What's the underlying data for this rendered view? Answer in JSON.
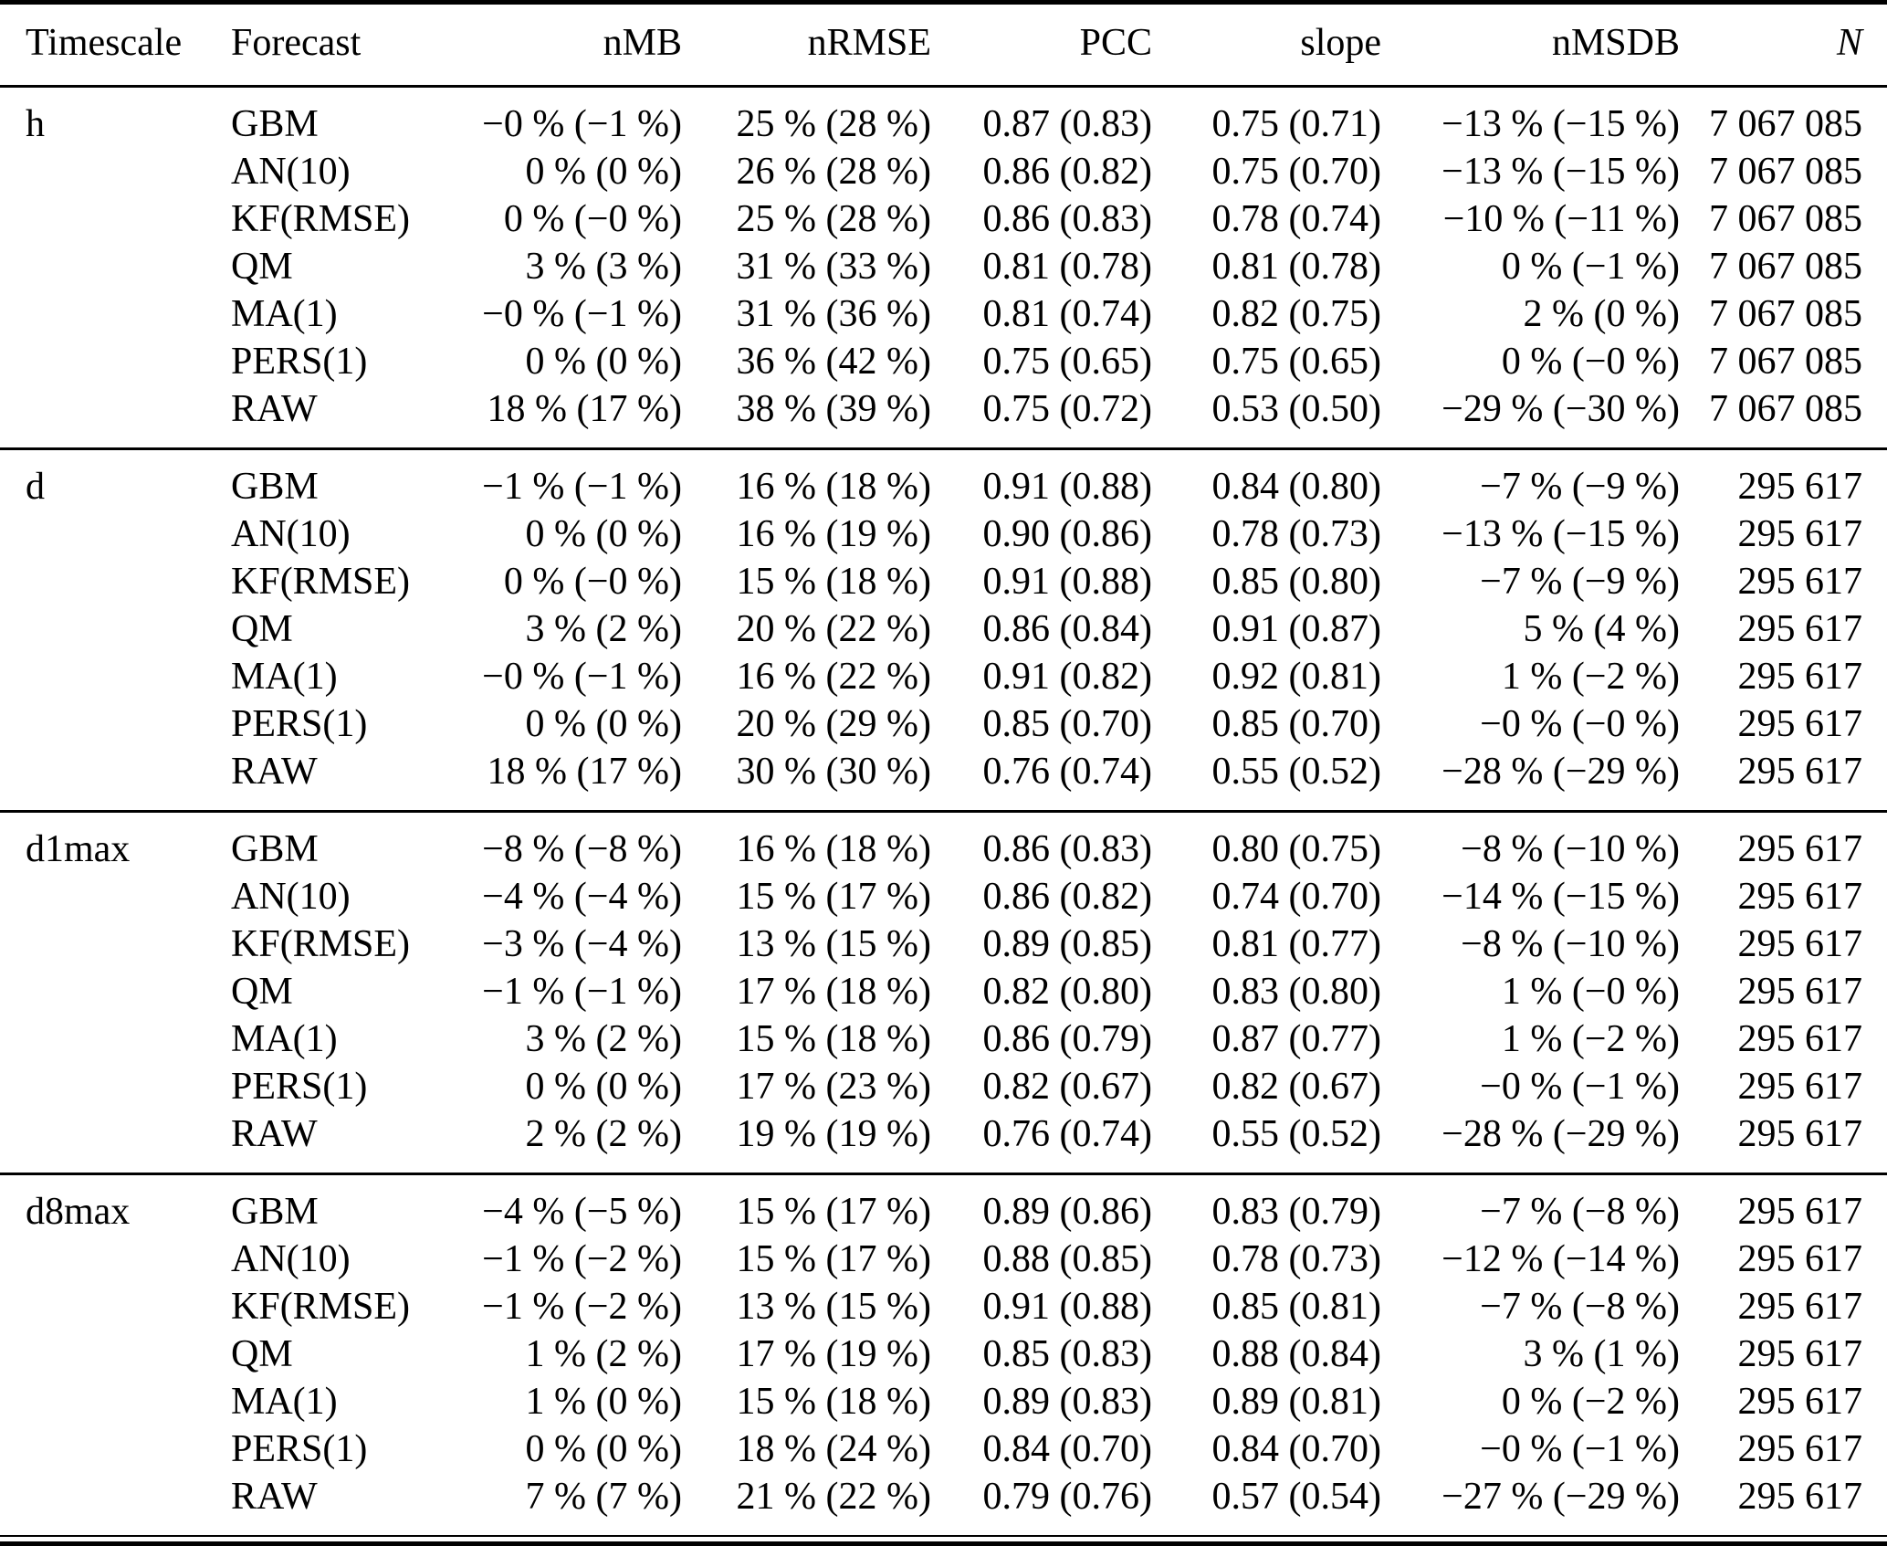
{
  "table": {
    "columns": {
      "timescale": "Timescale",
      "forecast": "Forecast",
      "nMB": "nMB",
      "nRMSE": "nRMSE",
      "PCC": "PCC",
      "slope": "slope",
      "nMSDB": "nMSDB",
      "N": "N"
    },
    "sections": [
      {
        "timescale": "h",
        "rows": [
          {
            "forecast": "GBM",
            "nMB": "−0 % (−1 %)",
            "nRMSE": "25 % (28 %)",
            "PCC": "0.87 (0.83)",
            "slope": "0.75 (0.71)",
            "nMSDB": "−13 % (−15 %)",
            "N": "7 067 085"
          },
          {
            "forecast": "AN(10)",
            "nMB": "0 % (0 %)",
            "nRMSE": "26 % (28 %)",
            "PCC": "0.86 (0.82)",
            "slope": "0.75 (0.70)",
            "nMSDB": "−13 % (−15 %)",
            "N": "7 067 085"
          },
          {
            "forecast": "KF(RMSE)",
            "nMB": "0 % (−0 %)",
            "nRMSE": "25 % (28 %)",
            "PCC": "0.86 (0.83)",
            "slope": "0.78 (0.74)",
            "nMSDB": "−10 % (−11 %)",
            "N": "7 067 085"
          },
          {
            "forecast": "QM",
            "nMB": "3 % (3 %)",
            "nRMSE": "31 % (33 %)",
            "PCC": "0.81 (0.78)",
            "slope": "0.81 (0.78)",
            "nMSDB": "0 % (−1 %)",
            "N": "7 067 085"
          },
          {
            "forecast": "MA(1)",
            "nMB": "−0 % (−1 %)",
            "nRMSE": "31 % (36 %)",
            "PCC": "0.81 (0.74)",
            "slope": "0.82 (0.75)",
            "nMSDB": "2 % (0 %)",
            "N": "7 067 085"
          },
          {
            "forecast": "PERS(1)",
            "nMB": "0 % (0 %)",
            "nRMSE": "36 % (42 %)",
            "PCC": "0.75 (0.65)",
            "slope": "0.75 (0.65)",
            "nMSDB": "0 % (−0 %)",
            "N": "7 067 085"
          },
          {
            "forecast": "RAW",
            "nMB": "18 % (17 %)",
            "nRMSE": "38 % (39 %)",
            "PCC": "0.75 (0.72)",
            "slope": "0.53 (0.50)",
            "nMSDB": "−29 % (−30 %)",
            "N": "7 067 085"
          }
        ]
      },
      {
        "timescale": "d",
        "rows": [
          {
            "forecast": "GBM",
            "nMB": "−1 % (−1 %)",
            "nRMSE": "16 % (18 %)",
            "PCC": "0.91 (0.88)",
            "slope": "0.84 (0.80)",
            "nMSDB": "−7 % (−9 %)",
            "N": "295 617"
          },
          {
            "forecast": "AN(10)",
            "nMB": "0 % (0 %)",
            "nRMSE": "16 % (19 %)",
            "PCC": "0.90 (0.86)",
            "slope": "0.78 (0.73)",
            "nMSDB": "−13 % (−15 %)",
            "N": "295 617"
          },
          {
            "forecast": "KF(RMSE)",
            "nMB": "0 % (−0 %)",
            "nRMSE": "15 % (18 %)",
            "PCC": "0.91 (0.88)",
            "slope": "0.85 (0.80)",
            "nMSDB": "−7 % (−9 %)",
            "N": "295 617"
          },
          {
            "forecast": "QM",
            "nMB": "3 % (2 %)",
            "nRMSE": "20 % (22 %)",
            "PCC": "0.86 (0.84)",
            "slope": "0.91 (0.87)",
            "nMSDB": "5 % (4 %)",
            "N": "295 617"
          },
          {
            "forecast": "MA(1)",
            "nMB": "−0 % (−1 %)",
            "nRMSE": "16 % (22 %)",
            "PCC": "0.91 (0.82)",
            "slope": "0.92 (0.81)",
            "nMSDB": "1 % (−2 %)",
            "N": "295 617"
          },
          {
            "forecast": "PERS(1)",
            "nMB": "0 % (0 %)",
            "nRMSE": "20 % (29 %)",
            "PCC": "0.85 (0.70)",
            "slope": "0.85 (0.70)",
            "nMSDB": "−0 % (−0 %)",
            "N": "295 617"
          },
          {
            "forecast": "RAW",
            "nMB": "18 % (17 %)",
            "nRMSE": "30 % (30 %)",
            "PCC": "0.76 (0.74)",
            "slope": "0.55 (0.52)",
            "nMSDB": "−28 % (−29 %)",
            "N": "295 617"
          }
        ]
      },
      {
        "timescale": "d1max",
        "rows": [
          {
            "forecast": "GBM",
            "nMB": "−8 % (−8 %)",
            "nRMSE": "16 % (18 %)",
            "PCC": "0.86 (0.83)",
            "slope": "0.80 (0.75)",
            "nMSDB": "−8 % (−10 %)",
            "N": "295 617"
          },
          {
            "forecast": "AN(10)",
            "nMB": "−4 % (−4 %)",
            "nRMSE": "15 % (17 %)",
            "PCC": "0.86 (0.82)",
            "slope": "0.74 (0.70)",
            "nMSDB": "−14 % (−15 %)",
            "N": "295 617"
          },
          {
            "forecast": "KF(RMSE)",
            "nMB": "−3 % (−4 %)",
            "nRMSE": "13 % (15 %)",
            "PCC": "0.89 (0.85)",
            "slope": "0.81 (0.77)",
            "nMSDB": "−8 % (−10 %)",
            "N": "295 617"
          },
          {
            "forecast": "QM",
            "nMB": "−1 % (−1 %)",
            "nRMSE": "17 % (18 %)",
            "PCC": "0.82 (0.80)",
            "slope": "0.83 (0.80)",
            "nMSDB": "1 % (−0 %)",
            "N": "295 617"
          },
          {
            "forecast": "MA(1)",
            "nMB": "3 % (2 %)",
            "nRMSE": "15 % (18 %)",
            "PCC": "0.86 (0.79)",
            "slope": "0.87 (0.77)",
            "nMSDB": "1 % (−2 %)",
            "N": "295 617"
          },
          {
            "forecast": "PERS(1)",
            "nMB": "0 % (0 %)",
            "nRMSE": "17 % (23 %)",
            "PCC": "0.82 (0.67)",
            "slope": "0.82 (0.67)",
            "nMSDB": "−0 % (−1 %)",
            "N": "295 617"
          },
          {
            "forecast": "RAW",
            "nMB": "2 % (2 %)",
            "nRMSE": "19 % (19 %)",
            "PCC": "0.76 (0.74)",
            "slope": "0.55 (0.52)",
            "nMSDB": "−28 % (−29 %)",
            "N": "295 617"
          }
        ]
      },
      {
        "timescale": "d8max",
        "rows": [
          {
            "forecast": "GBM",
            "nMB": "−4 % (−5 %)",
            "nRMSE": "15 % (17 %)",
            "PCC": "0.89 (0.86)",
            "slope": "0.83 (0.79)",
            "nMSDB": "−7 % (−8 %)",
            "N": "295 617"
          },
          {
            "forecast": "AN(10)",
            "nMB": "−1 % (−2 %)",
            "nRMSE": "15 % (17 %)",
            "PCC": "0.88 (0.85)",
            "slope": "0.78 (0.73)",
            "nMSDB": "−12 % (−14 %)",
            "N": "295 617"
          },
          {
            "forecast": "KF(RMSE)",
            "nMB": "−1 % (−2 %)",
            "nRMSE": "13 % (15 %)",
            "PCC": "0.91 (0.88)",
            "slope": "0.85 (0.81)",
            "nMSDB": "−7 % (−8 %)",
            "N": "295 617"
          },
          {
            "forecast": "QM",
            "nMB": "1 % (2 %)",
            "nRMSE": "17 % (19 %)",
            "PCC": "0.85 (0.83)",
            "slope": "0.88 (0.84)",
            "nMSDB": "3 % (1 %)",
            "N": "295 617"
          },
          {
            "forecast": "MA(1)",
            "nMB": "1 % (0 %)",
            "nRMSE": "15 % (18 %)",
            "PCC": "0.89 (0.83)",
            "slope": "0.89 (0.81)",
            "nMSDB": "0 % (−2 %)",
            "N": "295 617"
          },
          {
            "forecast": "PERS(1)",
            "nMB": "0 % (0 %)",
            "nRMSE": "18 % (24 %)",
            "PCC": "0.84 (0.70)",
            "slope": "0.84 (0.70)",
            "nMSDB": "−0 % (−1 %)",
            "N": "295 617"
          },
          {
            "forecast": "RAW",
            "nMB": "7 % (7 %)",
            "nRMSE": "21 % (22 %)",
            "PCC": "0.79 (0.76)",
            "slope": "0.57 (0.54)",
            "nMSDB": "−27 % (−29 %)",
            "N": "295 617"
          }
        ]
      }
    ]
  }
}
